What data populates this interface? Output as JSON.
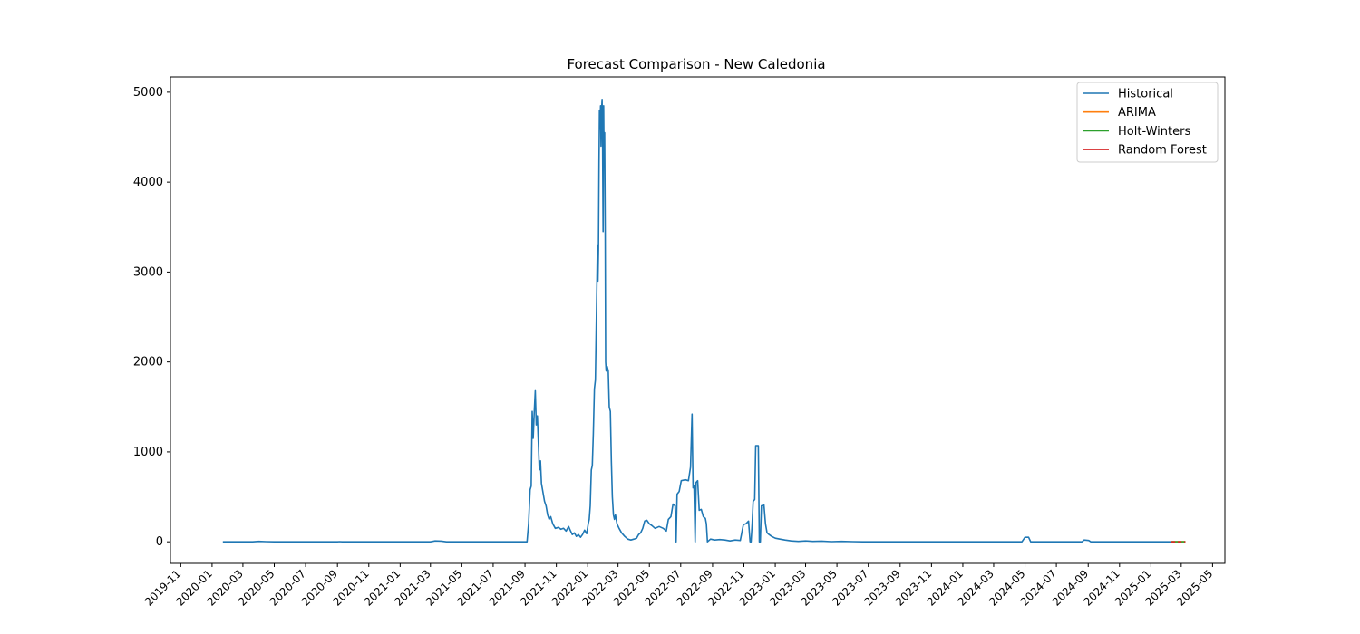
{
  "chart_data": {
    "type": "line",
    "title": "Forecast Comparison - New Caledonia",
    "xlabel": "",
    "ylabel": "",
    "xlim": [
      "2019-10-12",
      "2025-05-25"
    ],
    "ylim": [
      -240,
      5170
    ],
    "x_ticks": [
      "2019-11",
      "2020-01",
      "2020-03",
      "2020-05",
      "2020-07",
      "2020-09",
      "2020-11",
      "2021-01",
      "2021-03",
      "2021-05",
      "2021-07",
      "2021-09",
      "2021-11",
      "2022-01",
      "2022-03",
      "2022-05",
      "2022-07",
      "2022-09",
      "2022-11",
      "2023-01",
      "2023-03",
      "2023-05",
      "2023-07",
      "2023-09",
      "2023-11",
      "2024-01",
      "2024-03",
      "2024-05",
      "2024-07",
      "2024-09",
      "2024-11",
      "2025-01",
      "2025-03",
      "2025-05"
    ],
    "y_ticks": [
      0,
      1000,
      2000,
      3000,
      4000,
      5000
    ],
    "grid": false,
    "legend_position": "upper right",
    "series": [
      {
        "name": "Historical",
        "color": "#1f77b4",
        "points": [
          [
            "2020-01-22",
            0
          ],
          [
            "2020-03-20",
            0
          ],
          [
            "2020-04-01",
            5
          ],
          [
            "2020-04-15",
            2
          ],
          [
            "2020-05-01",
            0
          ],
          [
            "2020-09-01",
            0
          ],
          [
            "2020-09-05",
            2
          ],
          [
            "2020-09-10",
            0
          ],
          [
            "2021-03-01",
            0
          ],
          [
            "2021-03-10",
            10
          ],
          [
            "2021-03-22",
            8
          ],
          [
            "2021-04-01",
            0
          ],
          [
            "2021-09-01",
            0
          ],
          [
            "2021-09-05",
            0
          ],
          [
            "2021-09-08",
            200
          ],
          [
            "2021-09-11",
            580
          ],
          [
            "2021-09-13",
            620
          ],
          [
            "2021-09-15",
            1450
          ],
          [
            "2021-09-17",
            1150
          ],
          [
            "2021-09-19",
            1450
          ],
          [
            "2021-09-21",
            1680
          ],
          [
            "2021-09-23",
            1300
          ],
          [
            "2021-09-25",
            1400
          ],
          [
            "2021-09-27",
            1100
          ],
          [
            "2021-09-29",
            800
          ],
          [
            "2021-10-01",
            900
          ],
          [
            "2021-10-03",
            650
          ],
          [
            "2021-10-06",
            550
          ],
          [
            "2021-10-09",
            450
          ],
          [
            "2021-10-12",
            400
          ],
          [
            "2021-10-15",
            300
          ],
          [
            "2021-10-18",
            250
          ],
          [
            "2021-10-21",
            280
          ],
          [
            "2021-10-25",
            200
          ],
          [
            "2021-10-30",
            150
          ],
          [
            "2021-11-05",
            160
          ],
          [
            "2021-11-10",
            140
          ],
          [
            "2021-11-15",
            150
          ],
          [
            "2021-11-20",
            120
          ],
          [
            "2021-11-25",
            170
          ],
          [
            "2021-11-28",
            130
          ],
          [
            "2021-12-02",
            80
          ],
          [
            "2021-12-06",
            100
          ],
          [
            "2021-12-10",
            60
          ],
          [
            "2021-12-14",
            80
          ],
          [
            "2021-12-18",
            50
          ],
          [
            "2021-12-22",
            80
          ],
          [
            "2021-12-26",
            130
          ],
          [
            "2021-12-30",
            90
          ],
          [
            "2022-01-02",
            200
          ],
          [
            "2022-01-04",
            250
          ],
          [
            "2022-01-06",
            400
          ],
          [
            "2022-01-08",
            800
          ],
          [
            "2022-01-10",
            850
          ],
          [
            "2022-01-12",
            1200
          ],
          [
            "2022-01-14",
            1700
          ],
          [
            "2022-01-16",
            1800
          ],
          [
            "2022-01-18",
            2500
          ],
          [
            "2022-01-20",
            3300
          ],
          [
            "2022-01-21",
            2900
          ],
          [
            "2022-01-22",
            3250
          ],
          [
            "2022-01-23",
            4200
          ],
          [
            "2022-01-24",
            4800
          ],
          [
            "2022-01-25",
            4600
          ],
          [
            "2022-01-26",
            4850
          ],
          [
            "2022-01-27",
            4400
          ],
          [
            "2022-01-28",
            4800
          ],
          [
            "2022-01-29",
            4920
          ],
          [
            "2022-01-30",
            4500
          ],
          [
            "2022-01-31",
            3450
          ],
          [
            "2022-02-01",
            4850
          ],
          [
            "2022-02-02",
            4200
          ],
          [
            "2022-02-03",
            4550
          ],
          [
            "2022-02-04",
            3500
          ],
          [
            "2022-02-05",
            2000
          ],
          [
            "2022-02-06",
            1900
          ],
          [
            "2022-02-08",
            1950
          ],
          [
            "2022-02-10",
            1900
          ],
          [
            "2022-02-12",
            1500
          ],
          [
            "2022-02-14",
            1450
          ],
          [
            "2022-02-16",
            900
          ],
          [
            "2022-02-18",
            500
          ],
          [
            "2022-02-20",
            300
          ],
          [
            "2022-02-22",
            250
          ],
          [
            "2022-02-24",
            300
          ],
          [
            "2022-02-27",
            200
          ],
          [
            "2022-03-03",
            150
          ],
          [
            "2022-03-08",
            100
          ],
          [
            "2022-03-14",
            60
          ],
          [
            "2022-03-20",
            30
          ],
          [
            "2022-03-26",
            20
          ],
          [
            "2022-04-01",
            30
          ],
          [
            "2022-04-06",
            40
          ],
          [
            "2022-04-10",
            80
          ],
          [
            "2022-04-14",
            100
          ],
          [
            "2022-04-18",
            150
          ],
          [
            "2022-04-22",
            230
          ],
          [
            "2022-04-26",
            240
          ],
          [
            "2022-05-01",
            200
          ],
          [
            "2022-05-06",
            180
          ],
          [
            "2022-05-12",
            150
          ],
          [
            "2022-05-20",
            170
          ],
          [
            "2022-05-28",
            150
          ],
          [
            "2022-06-03",
            120
          ],
          [
            "2022-06-07",
            250
          ],
          [
            "2022-06-12",
            280
          ],
          [
            "2022-06-16",
            420
          ],
          [
            "2022-06-20",
            400
          ],
          [
            "2022-06-22",
            0
          ],
          [
            "2022-06-24",
            530
          ],
          [
            "2022-06-28",
            560
          ],
          [
            "2022-07-02",
            680
          ],
          [
            "2022-07-10",
            690
          ],
          [
            "2022-07-16",
            680
          ],
          [
            "2022-07-20",
            830
          ],
          [
            "2022-07-23",
            1420
          ],
          [
            "2022-07-25",
            600
          ],
          [
            "2022-07-27",
            620
          ],
          [
            "2022-07-29",
            0
          ],
          [
            "2022-07-31",
            660
          ],
          [
            "2022-08-03",
            680
          ],
          [
            "2022-08-06",
            350
          ],
          [
            "2022-08-10",
            360
          ],
          [
            "2022-08-14",
            280
          ],
          [
            "2022-08-18",
            260
          ],
          [
            "2022-08-20",
            200
          ],
          [
            "2022-08-22",
            0
          ],
          [
            "2022-08-28",
            30
          ],
          [
            "2022-09-05",
            20
          ],
          [
            "2022-09-15",
            25
          ],
          [
            "2022-09-25",
            20
          ],
          [
            "2022-10-05",
            10
          ],
          [
            "2022-10-15",
            20
          ],
          [
            "2022-10-25",
            15
          ],
          [
            "2022-10-31",
            190
          ],
          [
            "2022-11-05",
            200
          ],
          [
            "2022-11-10",
            230
          ],
          [
            "2022-11-13",
            0
          ],
          [
            "2022-11-15",
            0
          ],
          [
            "2022-11-17",
            200
          ],
          [
            "2022-11-19",
            450
          ],
          [
            "2022-11-22",
            470
          ],
          [
            "2022-11-24",
            1070
          ],
          [
            "2022-11-29",
            1070
          ],
          [
            "2022-12-01",
            0
          ],
          [
            "2022-12-03",
            0
          ],
          [
            "2022-12-05",
            400
          ],
          [
            "2022-12-10",
            410
          ],
          [
            "2022-12-13",
            200
          ],
          [
            "2022-12-16",
            100
          ],
          [
            "2022-12-20",
            80
          ],
          [
            "2022-12-25",
            60
          ],
          [
            "2023-01-01",
            40
          ],
          [
            "2023-01-10",
            30
          ],
          [
            "2023-01-20",
            20
          ],
          [
            "2023-02-01",
            10
          ],
          [
            "2023-02-15",
            5
          ],
          [
            "2023-03-01",
            10
          ],
          [
            "2023-03-15",
            5
          ],
          [
            "2023-04-01",
            8
          ],
          [
            "2023-04-20",
            2
          ],
          [
            "2023-05-10",
            5
          ],
          [
            "2023-06-01",
            2
          ],
          [
            "2023-06-20",
            0
          ],
          [
            "2024-04-25",
            0
          ],
          [
            "2024-05-01",
            50
          ],
          [
            "2024-05-08",
            50
          ],
          [
            "2024-05-12",
            0
          ],
          [
            "2024-08-20",
            0
          ],
          [
            "2024-08-24",
            20
          ],
          [
            "2024-09-02",
            15
          ],
          [
            "2024-09-06",
            0
          ],
          [
            "2025-02-10",
            0
          ]
        ]
      },
      {
        "name": "ARIMA",
        "color": "#ff7f0e",
        "points": [
          [
            "2025-02-10",
            2
          ],
          [
            "2025-03-09",
            2
          ]
        ]
      },
      {
        "name": "Holt-Winters",
        "color": "#2ca02c",
        "points": [
          [
            "2025-02-10",
            1
          ],
          [
            "2025-03-09",
            1
          ]
        ]
      },
      {
        "name": "Random Forest",
        "color": "#d62728",
        "dashed": true,
        "points": [
          [
            "2025-02-10",
            0
          ],
          [
            "2025-03-09",
            0
          ]
        ]
      }
    ]
  }
}
